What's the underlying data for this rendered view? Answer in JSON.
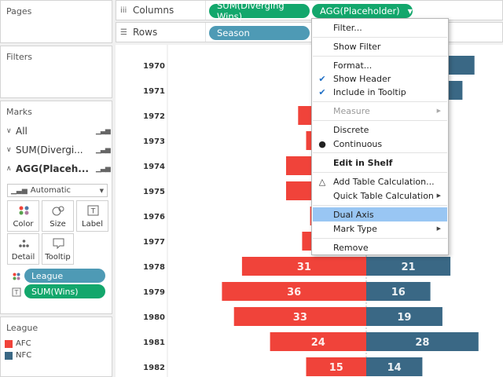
{
  "colors": {
    "afc": "#f0433a",
    "nfc": "#3a6885",
    "green_pill": "#13a76c",
    "teal_pill": "#4e9ab5",
    "highlight": "#99c6f3"
  },
  "pages": {
    "title": "Pages"
  },
  "filters": {
    "title": "Filters"
  },
  "marks": {
    "title": "Marks",
    "rows": [
      {
        "label": "All",
        "chevron": "∨",
        "icon": "bar-chart-icon"
      },
      {
        "label": "SUM(Divergi...",
        "chevron": "∨",
        "icon": "bar-chart-icon"
      },
      {
        "label": "AGG(Placeh...",
        "chevron": "∧",
        "icon": "bar-chart-icon"
      }
    ],
    "mark_type": "Automatic",
    "cards": [
      {
        "label": "Color",
        "icon": "color-dots-icon"
      },
      {
        "label": "Size",
        "icon": "size-icon"
      },
      {
        "label": "Label",
        "icon": "label-icon"
      },
      {
        "label": "Detail",
        "icon": "detail-dots-icon"
      },
      {
        "label": "Tooltip",
        "icon": "tooltip-icon"
      }
    ],
    "pills": [
      {
        "label": "League",
        "icon": "color-dots-icon"
      },
      {
        "label": "SUM(Wins)",
        "icon": "label-text-icon"
      }
    ]
  },
  "legend": {
    "title": "League",
    "items": [
      {
        "label": "AFC",
        "color": "#f0433a"
      },
      {
        "label": "NFC",
        "color": "#3a6885"
      }
    ]
  },
  "shelves": {
    "columns_label": "Columns",
    "rows_label": "Rows",
    "columns_pills": [
      "SUM(Diverging Wins)",
      "AGG(Placeholder)"
    ],
    "rows_pills": [
      "Season"
    ]
  },
  "context_menu": {
    "items": [
      {
        "label": "Filter...",
        "checked": false,
        "arrow": false
      },
      {
        "label": "Show Filter",
        "checked": false,
        "arrow": false
      },
      {
        "label": "Format...",
        "checked": false,
        "arrow": false
      },
      {
        "label": "Show Header",
        "checked": true,
        "arrow": false
      },
      {
        "label": "Include in Tooltip",
        "checked": true,
        "arrow": false
      },
      {
        "label": "Measure",
        "checked": false,
        "arrow": true,
        "disabled": true
      },
      {
        "label": "Discrete",
        "checked": false,
        "arrow": false
      },
      {
        "label": "Continuous",
        "checked": false,
        "bullet": true,
        "arrow": false
      },
      {
        "label": "Edit in Shelf",
        "checked": false,
        "arrow": false,
        "bold": true
      },
      {
        "label": "Add Table Calculation...",
        "checked": false,
        "arrow": false,
        "delta": true
      },
      {
        "label": "Quick Table Calculation",
        "checked": false,
        "arrow": true
      },
      {
        "label": "Dual Axis",
        "checked": false,
        "arrow": false,
        "highlighted": true
      },
      {
        "label": "Mark Type",
        "checked": false,
        "arrow": true
      },
      {
        "label": "Remove",
        "checked": false,
        "arrow": false
      }
    ]
  },
  "chart_data": {
    "type": "bar",
    "orientation": "horizontal-diverging",
    "categories": [
      "1970",
      "1971",
      "1972",
      "1973",
      "1974",
      "1975",
      "1976",
      "1977",
      "1978",
      "1979",
      "1980",
      "1981",
      "1982"
    ],
    "series": [
      {
        "name": "AFC",
        "values": [
          null,
          8,
          17,
          15,
          20,
          20,
          14,
          16,
          31,
          36,
          33,
          24,
          15
        ],
        "labels": [
          null,
          null,
          null,
          null,
          null,
          null,
          null,
          null,
          "31",
          "36",
          "33",
          "24",
          "15"
        ]
      },
      {
        "name": "NFC",
        "values": [
          27,
          24,
          null,
          null,
          null,
          null,
          null,
          null,
          21,
          16,
          19,
          28,
          14
        ],
        "labels": [
          null,
          null,
          null,
          null,
          null,
          null,
          null,
          null,
          "21",
          "16",
          "19",
          "28",
          "14"
        ]
      }
    ],
    "legend": "left-panel",
    "grid": false
  }
}
